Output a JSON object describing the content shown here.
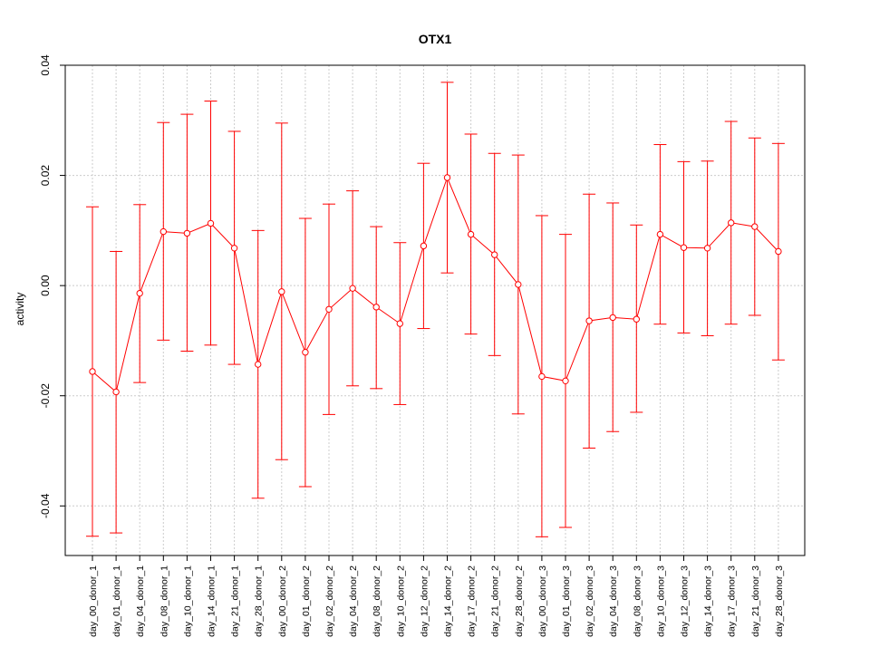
{
  "chart_data": {
    "type": "line",
    "title": "OTX1",
    "xlabel": "",
    "ylabel": "activity",
    "ylim": [
      -0.049,
      0.04
    ],
    "yticks": [
      -0.04,
      -0.02,
      0.0,
      0.02,
      0.04
    ],
    "ytick_labels": [
      "-0.04",
      "-0.02",
      "0.00",
      "0.02",
      "0.04"
    ],
    "grid": true,
    "series_color": "#ff0000",
    "categories": [
      "day_00_donor_1",
      "day_01_donor_1",
      "day_04_donor_1",
      "day_08_donor_1",
      "day_10_donor_1",
      "day_14_donor_1",
      "day_21_donor_1",
      "day_28_donor_1",
      "day_00_donor_2",
      "day_01_donor_2",
      "day_02_donor_2",
      "day_04_donor_2",
      "day_08_donor_2",
      "day_10_donor_2",
      "day_12_donor_2",
      "day_14_donor_2",
      "day_17_donor_2",
      "day_21_donor_2",
      "day_28_donor_2",
      "day_00_donor_3",
      "day_01_donor_3",
      "day_02_donor_3",
      "day_04_donor_3",
      "day_08_donor_3",
      "day_10_donor_3",
      "day_12_donor_3",
      "day_14_donor_3",
      "day_17_donor_3",
      "day_21_donor_3",
      "day_28_donor_3"
    ],
    "values": [
      -0.0156,
      -0.0193,
      -0.0014,
      0.0098,
      0.0095,
      0.0113,
      0.0068,
      -0.0143,
      -0.0011,
      -0.0121,
      -0.0043,
      -0.0005,
      -0.0039,
      -0.0069,
      0.0072,
      0.0196,
      0.0093,
      0.0056,
      0.0002,
      -0.0165,
      -0.0173,
      -0.0064,
      -0.0058,
      -0.0061,
      0.0093,
      0.0069,
      0.0068,
      0.0114,
      0.0107,
      0.0062
    ],
    "upper": [
      0.0143,
      0.0062,
      0.0147,
      0.0296,
      0.0311,
      0.0335,
      0.028,
      0.01,
      0.0295,
      0.0122,
      0.0148,
      0.0172,
      0.0107,
      0.0078,
      0.0222,
      0.0369,
      0.0275,
      0.024,
      0.0237,
      0.0127,
      0.0093,
      0.0166,
      0.015,
      0.011,
      0.0256,
      0.0225,
      0.0226,
      0.0298,
      0.0268,
      0.0258
    ],
    "lower": [
      -0.0455,
      -0.0449,
      -0.0176,
      -0.0099,
      -0.0119,
      -0.0108,
      -0.0143,
      -0.0386,
      -0.0316,
      -0.0365,
      -0.0234,
      -0.0182,
      -0.0187,
      -0.0216,
      -0.0078,
      0.0023,
      -0.0088,
      -0.0127,
      -0.0233,
      -0.0456,
      -0.0439,
      -0.0295,
      -0.0265,
      -0.023,
      -0.007,
      -0.0086,
      -0.0091,
      -0.007,
      -0.0054,
      -0.0135
    ]
  }
}
